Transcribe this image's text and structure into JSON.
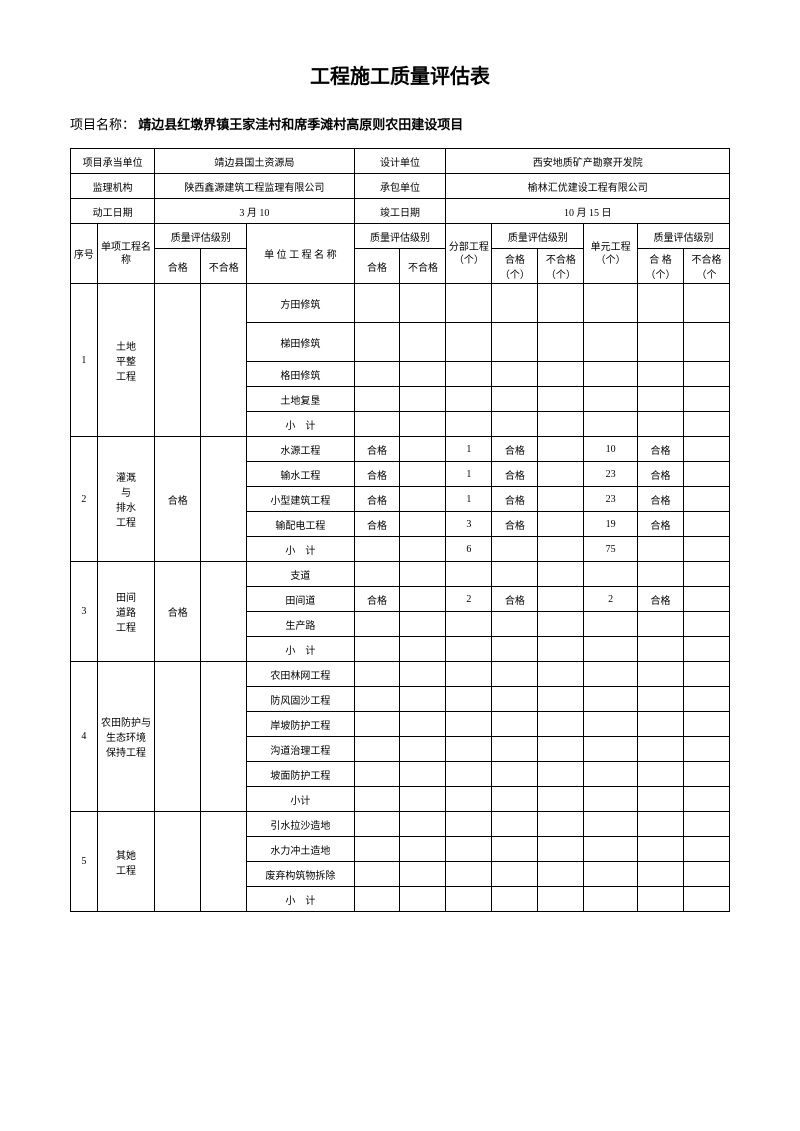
{
  "title": "工程施工质量评估表",
  "project_label": "项目名称：",
  "project_name": "靖边县红墩界镇王家洼村和席季滩村高原则农田建设项目",
  "info": {
    "r1c1": "项目承当单位",
    "r1c2": "靖边县国土资源局",
    "r1c3": "设计单位",
    "r1c4": "西安地质矿产勘察开发院",
    "r2c1": "监理机构",
    "r2c2": "陕西鑫源建筑工程监理有限公司",
    "r2c3": "承包单位",
    "r2c4": "榆林汇优建设工程有限公司",
    "r3c1": "动工日期",
    "r3c2": "3 月 10",
    "r3c3": "竣工日期",
    "r3c4": "10 月 15 日"
  },
  "head": {
    "seq": "序号",
    "single": "单项工程名称",
    "q_rating": "质量评估级别",
    "pass": "合格",
    "fail": "不合格",
    "unit_name": "单 位 工 程 名 称",
    "sub": "分部工程（个）",
    "pass_n": "合格（个）",
    "fail_n": "不合格（个）",
    "cell": "单元工程（个）",
    "pass_n2": "合 格（个）",
    "fail_n2": "不合格（个"
  },
  "groups": [
    {
      "seq": "1",
      "name": "土地\n平整\n工程",
      "rating": "",
      "rows": [
        {
          "u": "方田修筑"
        },
        {
          "u": "梯田修筑"
        },
        {
          "u": "格田修筑"
        },
        {
          "u": "土地复垦"
        },
        {
          "u": "小　计"
        }
      ]
    },
    {
      "seq": "2",
      "name": "灌溉\n与\n排水\n工程",
      "rating": "合格",
      "rows": [
        {
          "u": "水源工程",
          "q2a": "合格",
          "sub": "1",
          "q3a": "合格",
          "cell": "10",
          "q4a": "合格"
        },
        {
          "u": "输水工程",
          "q2a": "合格",
          "sub": "1",
          "q3a": "合格",
          "cell": "23",
          "q4a": "合格"
        },
        {
          "u": "小型建筑工程",
          "q2a": "合格",
          "sub": "1",
          "q3a": "合格",
          "cell": "23",
          "q4a": "合格"
        },
        {
          "u": "输配电工程",
          "q2a": "合格",
          "sub": "3",
          "q3a": "合格",
          "cell": "19",
          "q4a": "合格"
        },
        {
          "u": "小　计",
          "sub": "6",
          "cell": "75"
        }
      ]
    },
    {
      "seq": "3",
      "name": "田间\n道路\n工程",
      "rating": "合格",
      "rows": [
        {
          "u": "支道"
        },
        {
          "u": "田间道",
          "q2a": "合格",
          "sub": "2",
          "q3a": "合格",
          "cell": "2",
          "q4a": "合格"
        },
        {
          "u": "生产路"
        },
        {
          "u": "小　计"
        }
      ]
    },
    {
      "seq": "4",
      "name": "农田防护与生态环境\n保持工程",
      "rating": "",
      "rows": [
        {
          "u": "农田林网工程"
        },
        {
          "u": "防风固沙工程"
        },
        {
          "u": "岸坡防护工程"
        },
        {
          "u": "沟道治理工程"
        },
        {
          "u": "坡面防护工程"
        },
        {
          "u": "小计"
        }
      ]
    },
    {
      "seq": "5",
      "name": "其她\n工程",
      "rating": "",
      "rows": [
        {
          "u": "引水拉沙造地"
        },
        {
          "u": "水力冲土造地"
        },
        {
          "u": "废弃构筑物拆除"
        },
        {
          "u": "小　计"
        }
      ]
    }
  ]
}
